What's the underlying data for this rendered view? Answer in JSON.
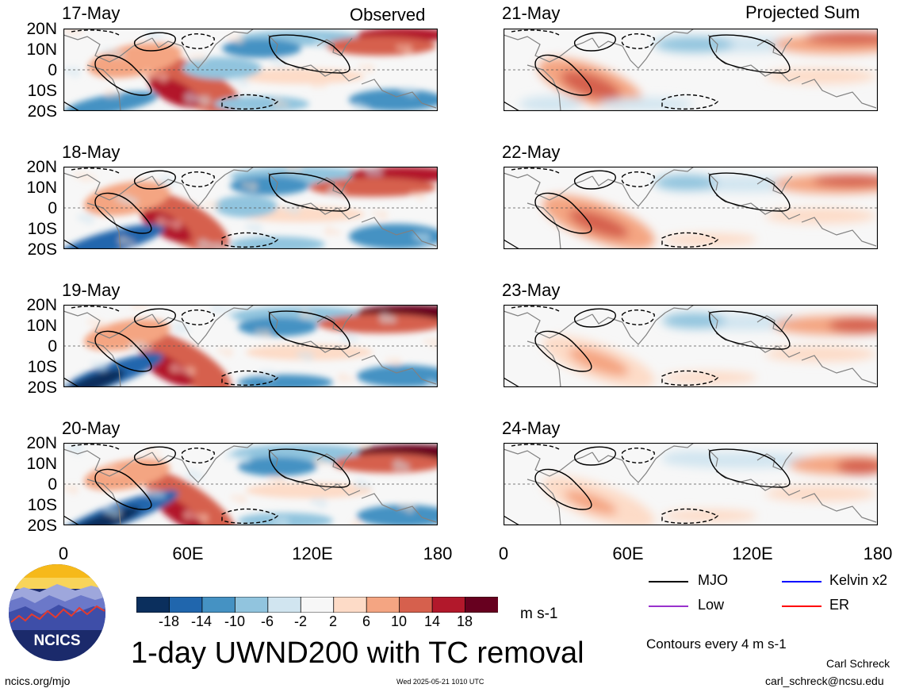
{
  "colors": {
    "scale": [
      "#0b2f5d",
      "#2066ad",
      "#4592c3",
      "#91c4de",
      "#d1e5f0",
      "#f7f7f7",
      "#fddbc7",
      "#f4a582",
      "#d6604d",
      "#b2182b",
      "#67001f"
    ],
    "mjo": "#000000",
    "kelvin": "#0000ff",
    "low": "#9932cc",
    "er": "#ff0000",
    "land": "#808080",
    "logo_bg": "#1b2a6b",
    "logo_sun": "#f6b91a"
  },
  "header": {
    "observed": "Observed",
    "projected": "Projected Sum"
  },
  "panels": {
    "left": [
      {
        "date": "17-May"
      },
      {
        "date": "18-May"
      },
      {
        "date": "19-May"
      },
      {
        "date": "20-May"
      }
    ],
    "right": [
      {
        "date": "21-May"
      },
      {
        "date": "22-May"
      },
      {
        "date": "23-May"
      },
      {
        "date": "24-May"
      }
    ]
  },
  "lat_labels": [
    "20N",
    "10N",
    "0",
    "10S",
    "20S"
  ],
  "lon_labels": [
    "0",
    "60E",
    "120E",
    "180"
  ],
  "colorbar": {
    "labels": [
      "-18",
      "-14",
      "-10",
      "-6",
      "-2",
      "2",
      "6",
      "10",
      "14",
      "18"
    ],
    "units": "m s-1"
  },
  "legend": {
    "mjo": "MJO",
    "kelvin": "Kelvin x2",
    "low": "Low",
    "er": "ER",
    "contours": "Contours every 4 m s-1"
  },
  "logo": {
    "text": "NCICS"
  },
  "title": "1-day UWND200 with TC removal",
  "footer": {
    "website": "ncics.org/mjo",
    "timestamp": "Wed 2025-05-21 1010 UTC",
    "author": "Carl Schreck",
    "email": "carl_schreck@ncsu.edu"
  }
}
